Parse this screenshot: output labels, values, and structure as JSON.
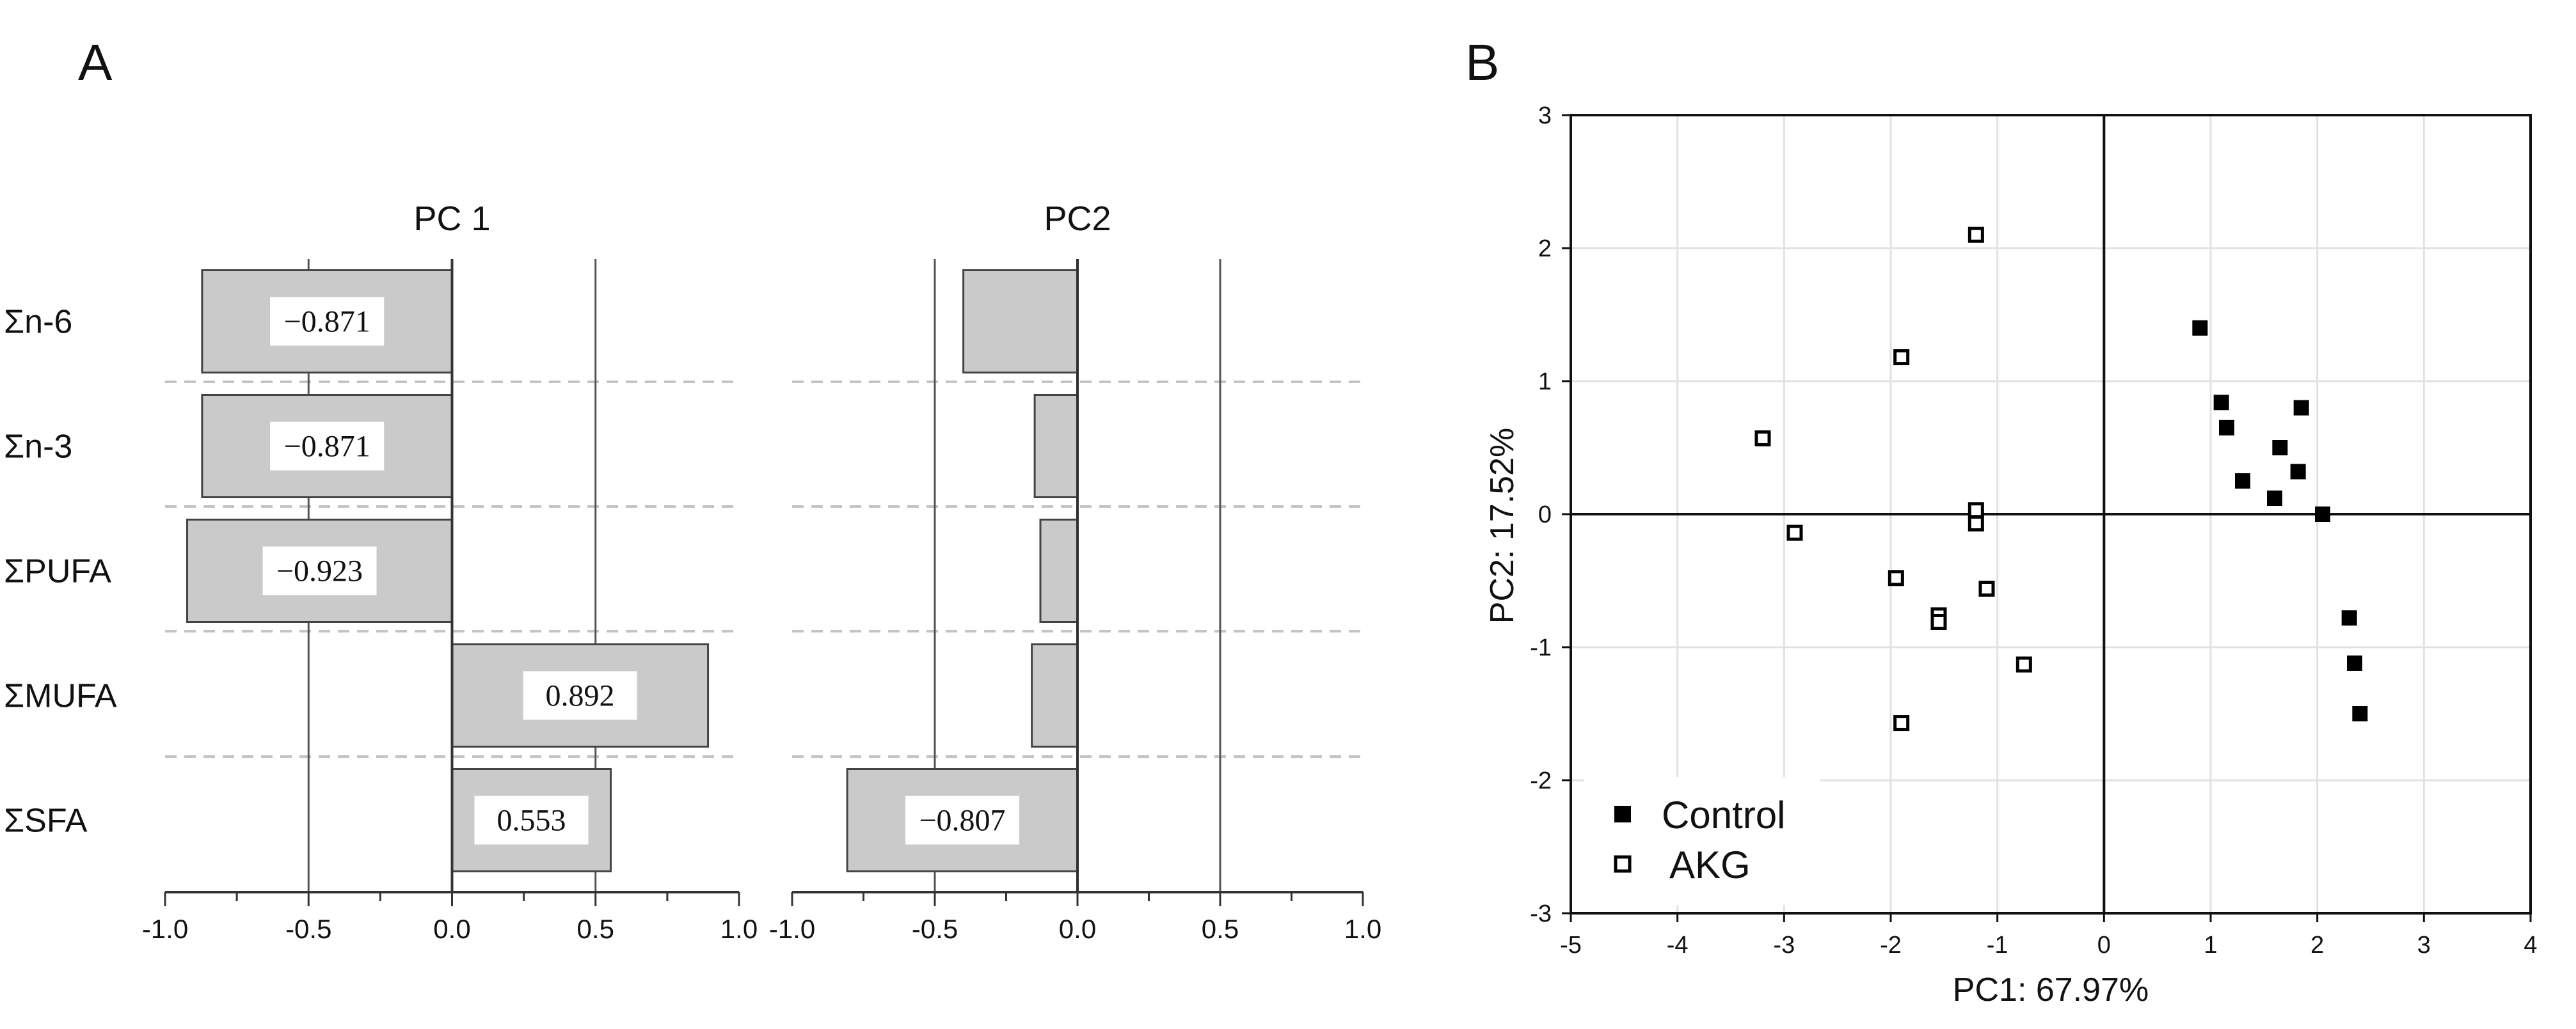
{
  "panels": {
    "a": {
      "label": "A"
    },
    "b": {
      "label": "B"
    }
  },
  "chart_data": [
    {
      "type": "bar",
      "orientation": "horizontal",
      "title": "PC 1",
      "categories": [
        "Σn-6",
        "Σn-3",
        "ΣPUFA",
        "ΣMUFA",
        "ΣSFA"
      ],
      "values": [
        -0.871,
        -0.871,
        -0.923,
        0.892,
        0.553
      ],
      "data_labels": [
        "−0.871",
        "−0.871",
        "−0.923",
        "0.892",
        "0.553"
      ],
      "xlim": [
        -1.0,
        1.0
      ],
      "xticks": [
        "-1.0",
        "-0.5",
        "0.0",
        "0.5",
        "1.0"
      ],
      "grid": true
    },
    {
      "type": "bar",
      "orientation": "horizontal",
      "title": "PC2",
      "categories": [
        "Σn-6",
        "Σn-3",
        "ΣPUFA",
        "ΣMUFA",
        "ΣSFA"
      ],
      "values": [
        -0.4,
        -0.15,
        -0.13,
        -0.16,
        -0.807
      ],
      "data_labels": [
        "",
        "",
        "",
        "",
        "−0.807"
      ],
      "xlim": [
        -1.0,
        1.0
      ],
      "xticks": [
        "-1.0",
        "-0.5",
        "0.0",
        "0.5",
        "1.0"
      ],
      "grid": true
    },
    {
      "type": "scatter",
      "xlabel": "PC1: 67.97%",
      "ylabel": "PC2: 17.52%",
      "xlim": [
        -5,
        4
      ],
      "ylim": [
        -3,
        3
      ],
      "xticks": [
        "-5",
        "-4",
        "-3",
        "-2",
        "-1",
        "0",
        "1",
        "2",
        "3",
        "4"
      ],
      "yticks": [
        "-3",
        "-2",
        "-1",
        "0",
        "1",
        "2",
        "3"
      ],
      "grid": true,
      "legend_position": "bottom-left",
      "series": [
        {
          "name": "Control",
          "marker": "filled-square",
          "color": "#000000",
          "points": [
            [
              0.9,
              1.4
            ],
            [
              1.1,
              0.84
            ],
            [
              1.15,
              0.65
            ],
            [
              1.85,
              0.8
            ],
            [
              1.65,
              0.5
            ],
            [
              1.3,
              0.25
            ],
            [
              1.82,
              0.32
            ],
            [
              1.6,
              0.12
            ],
            [
              2.05,
              0.0
            ],
            [
              2.3,
              -0.78
            ],
            [
              2.35,
              -1.12
            ],
            [
              2.4,
              -1.5
            ]
          ]
        },
        {
          "name": "AKG",
          "marker": "open-square",
          "color": "#000000",
          "points": [
            [
              -1.2,
              2.1
            ],
            [
              -1.9,
              1.18
            ],
            [
              -3.2,
              0.57
            ],
            [
              -2.9,
              -0.14
            ],
            [
              -1.2,
              0.03
            ],
            [
              -1.2,
              -0.07
            ],
            [
              -1.95,
              -0.48
            ],
            [
              -1.1,
              -0.56
            ],
            [
              -1.55,
              -0.76
            ],
            [
              -1.55,
              -0.81
            ],
            [
              -0.75,
              -1.13
            ],
            [
              -1.9,
              -1.57
            ]
          ]
        }
      ]
    }
  ]
}
